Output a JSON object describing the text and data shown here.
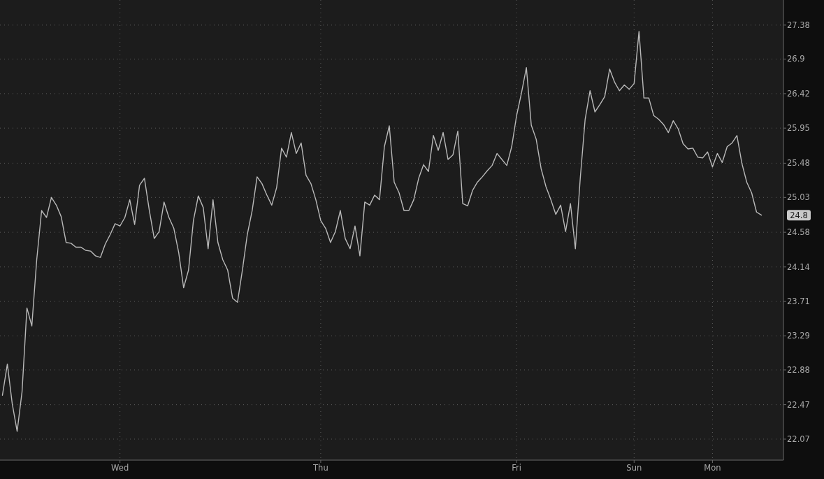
{
  "chart_data": {
    "type": "line",
    "categories": [
      null,
      null,
      null,
      null,
      null,
      null,
      null,
      null,
      null,
      null,
      null,
      null,
      null,
      null,
      null,
      null,
      null,
      null,
      null,
      null,
      null,
      null,
      null,
      null,
      "Wed",
      null,
      null,
      null,
      null,
      null,
      null,
      null,
      null,
      null,
      null,
      null,
      null,
      null,
      null,
      null,
      null,
      null,
      null,
      null,
      null,
      null,
      null,
      null,
      null,
      null,
      null,
      null,
      null,
      null,
      null,
      null,
      null,
      null,
      null,
      null,
      null,
      null,
      null,
      null,
      null,
      "Thu",
      null,
      null,
      null,
      null,
      null,
      null,
      null,
      null,
      null,
      null,
      null,
      null,
      null,
      null,
      null,
      null,
      null,
      null,
      null,
      null,
      null,
      null,
      null,
      null,
      null,
      null,
      null,
      null,
      null,
      null,
      null,
      null,
      null,
      null,
      null,
      null,
      null,
      null,
      null,
      "Fri",
      null,
      null,
      null,
      null,
      null,
      null,
      null,
      null,
      null,
      null,
      null,
      null,
      null,
      null,
      null,
      null,
      null,
      null,
      null,
      null,
      null,
      null,
      null,
      "Sun",
      null,
      null,
      null,
      null,
      null,
      null,
      null,
      null,
      null,
      null,
      null,
      null,
      null,
      null,
      null,
      "Mon",
      null,
      null,
      null,
      null,
      null,
      null,
      null,
      null,
      null,
      null,
      null,
      null,
      null,
      null
    ],
    "series": [
      {
        "color": "#b9b9b9",
        "values": [
          22.58,
          22.95,
          22.48,
          22.16,
          22.62,
          23.63,
          23.41,
          24.23,
          24.86,
          24.77,
          25.03,
          24.93,
          24.78,
          24.45,
          24.44,
          24.39,
          24.39,
          24.35,
          24.34,
          24.28,
          24.26,
          24.43,
          24.55,
          24.69,
          24.66,
          24.77,
          25.0,
          24.68,
          25.19,
          25.28,
          24.86,
          24.5,
          24.59,
          24.97,
          24.77,
          24.63,
          24.32,
          23.88,
          24.1,
          24.73,
          25.05,
          24.9,
          24.37,
          25.0,
          24.45,
          24.23,
          24.1,
          23.75,
          23.7,
          24.1,
          24.55,
          24.86,
          25.3,
          25.21,
          25.06,
          24.93,
          25.16,
          25.68,
          25.56,
          25.89,
          25.61,
          25.75,
          25.32,
          25.21,
          25.0,
          24.73,
          24.63,
          24.45,
          24.59,
          24.86,
          24.5,
          24.37,
          24.66,
          24.28,
          24.97,
          24.93,
          25.06,
          25.0,
          25.7,
          25.98,
          25.23,
          25.09,
          24.86,
          24.86,
          25.0,
          25.28,
          25.46,
          25.37,
          25.85,
          25.65,
          25.89,
          25.53,
          25.59,
          25.91,
          24.95,
          24.92,
          25.12,
          25.23,
          25.3,
          25.38,
          25.45,
          25.61,
          25.53,
          25.45,
          25.7,
          26.12,
          26.43,
          26.78,
          25.99,
          25.8,
          25.41,
          25.17,
          25.0,
          24.81,
          24.93,
          24.59,
          24.95,
          24.37,
          25.28,
          26.07,
          26.46,
          26.17,
          26.27,
          26.38,
          26.76,
          26.58,
          26.46,
          26.54,
          26.48,
          26.56,
          27.29,
          26.36,
          26.36,
          26.12,
          26.07,
          26.0,
          25.89,
          26.05,
          25.94,
          25.74,
          25.67,
          25.68,
          25.56,
          25.55,
          25.63,
          25.43,
          25.61,
          25.49,
          25.7,
          25.75,
          25.85,
          25.48,
          25.23,
          25.09,
          24.84,
          24.8,
          null,
          null,
          null,
          null
        ]
      }
    ],
    "log": true,
    "ylim": [
      21.83,
      27.74
    ],
    "yticks": [
      22.07,
      22.47,
      22.88,
      23.29,
      23.71,
      24.14,
      24.58,
      25.03,
      25.48,
      25.95,
      26.42,
      26.9,
      27.38
    ],
    "grid": true,
    "line_style": "solid",
    "annotations": [
      "24.8"
    ]
  }
}
